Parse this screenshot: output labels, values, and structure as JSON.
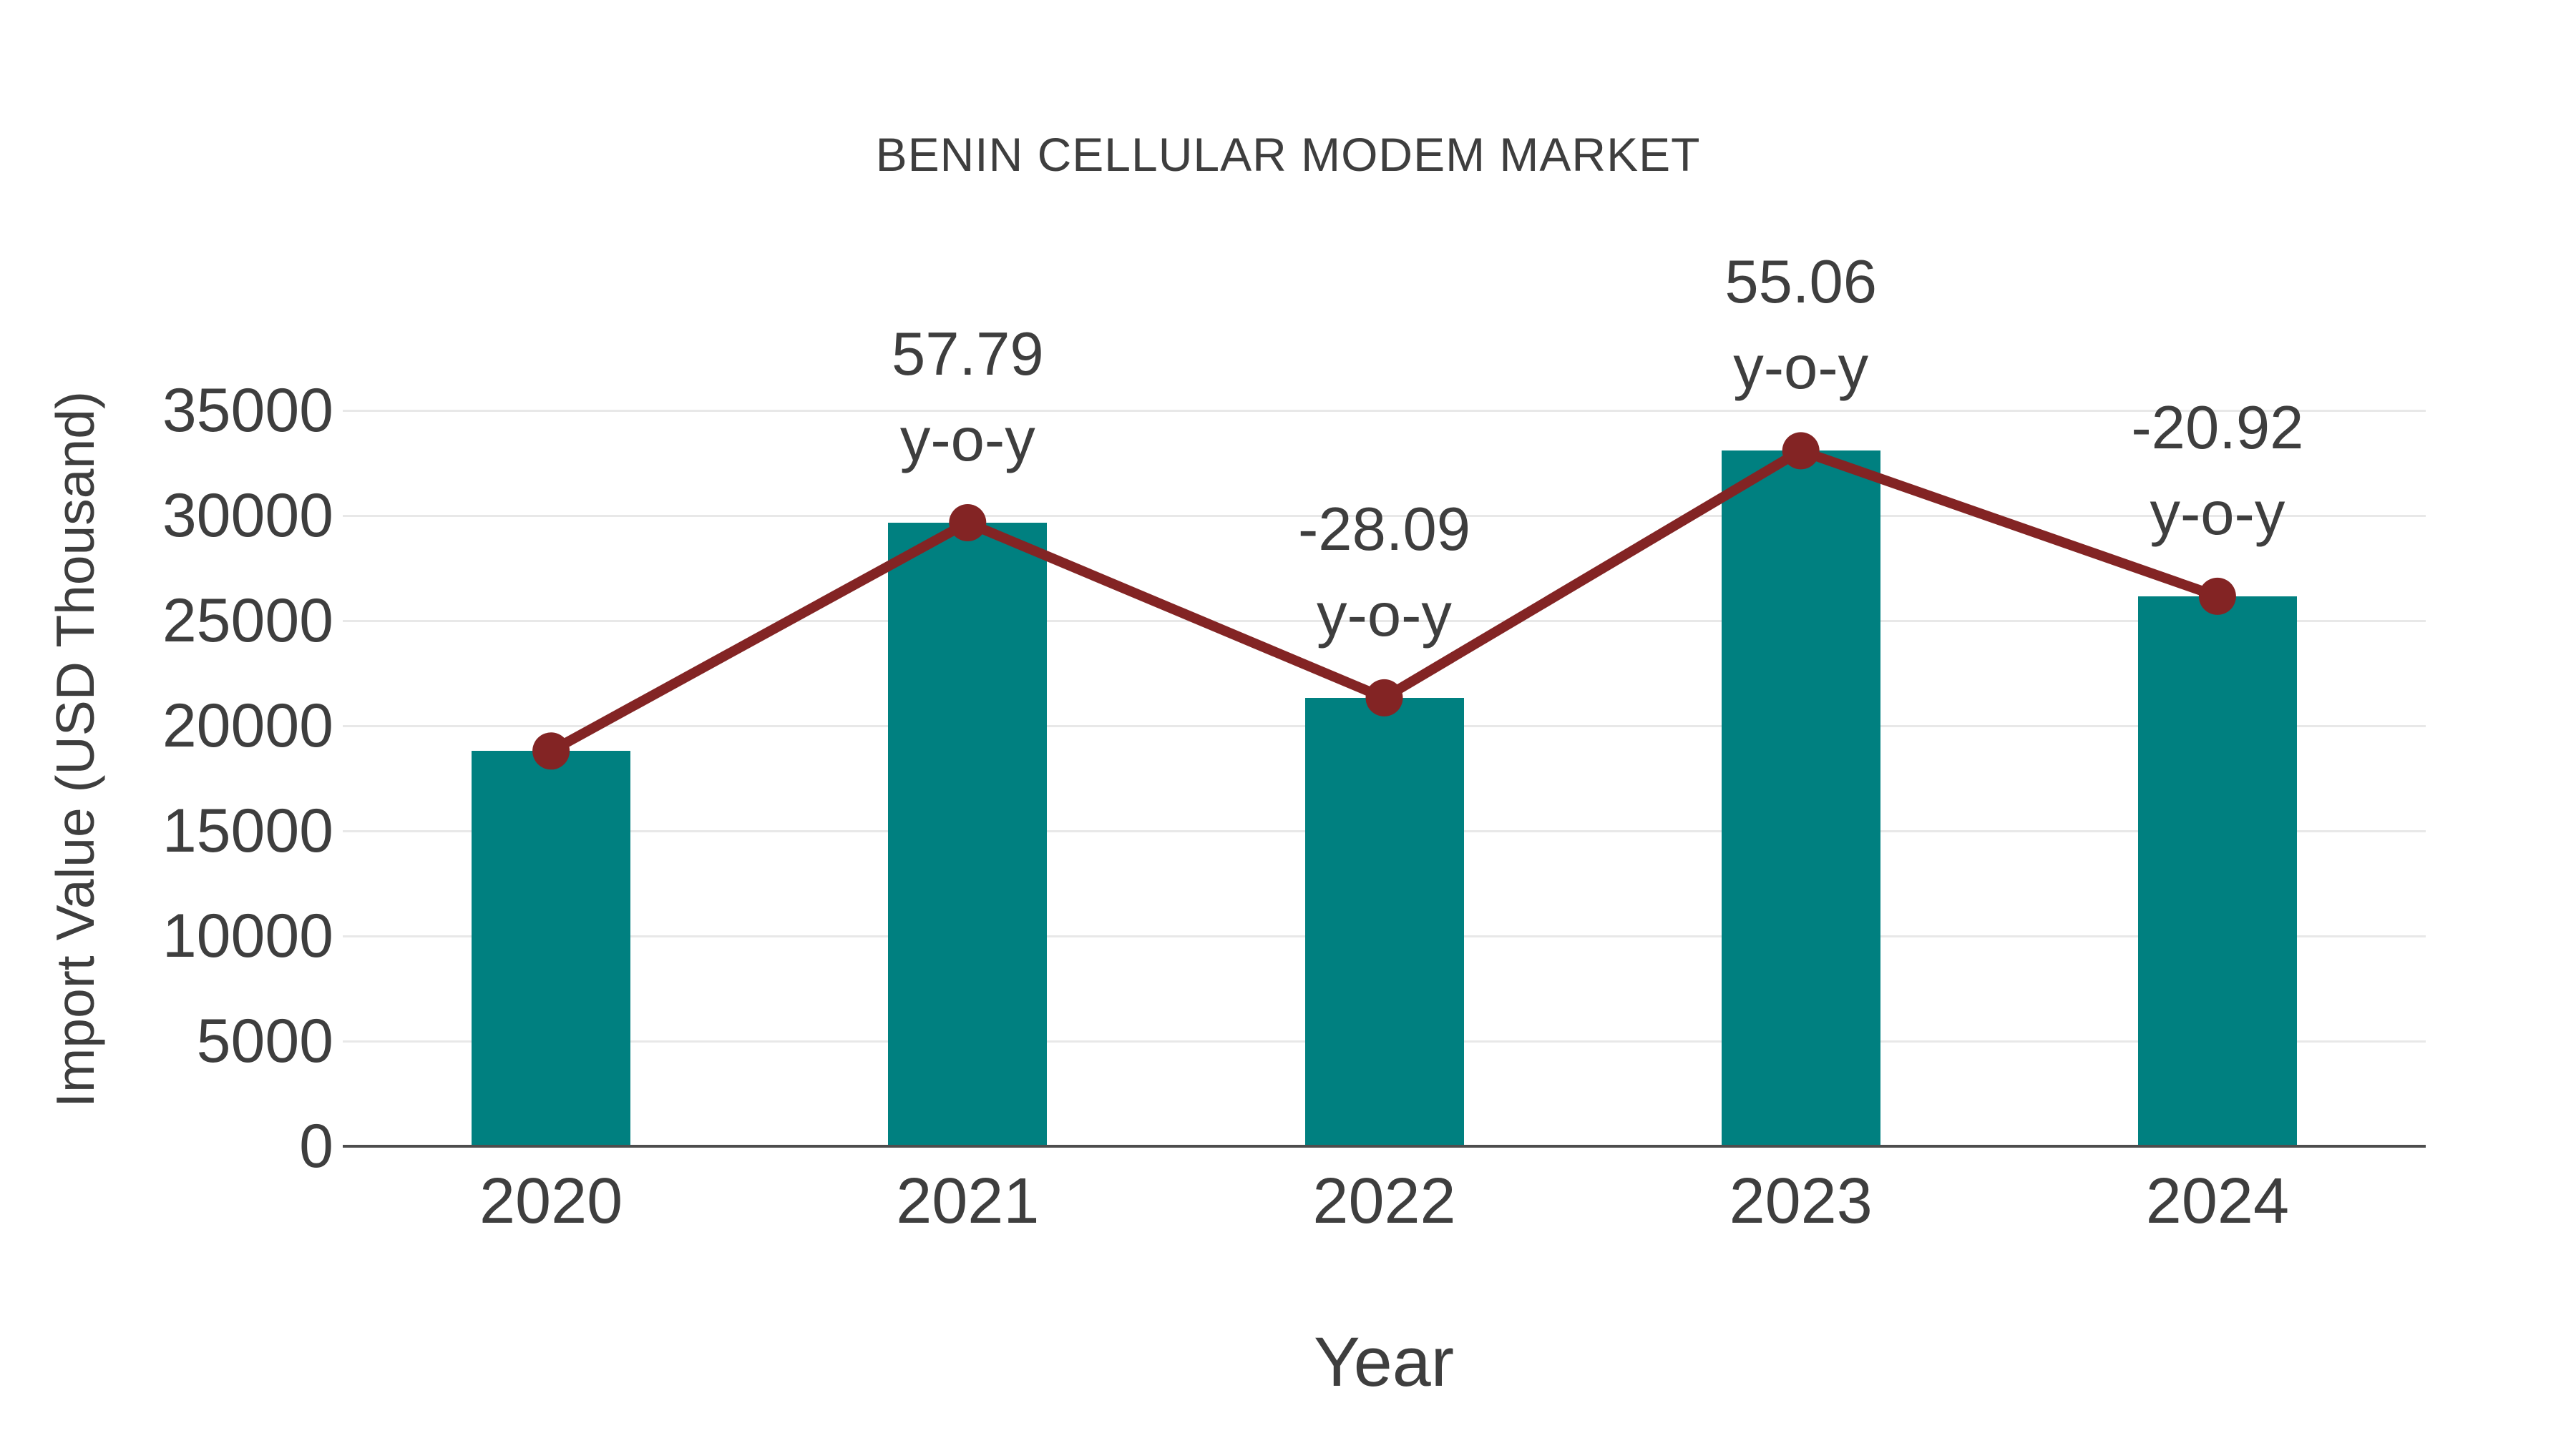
{
  "chart_data": {
    "type": "bar",
    "title": "BENIN CELLULAR MODEM MARKET",
    "xlabel": "Year",
    "ylabel": "Import Value (USD Thousand)",
    "categories": [
      "2020",
      "2021",
      "2022",
      "2023",
      "2024"
    ],
    "series": [
      {
        "name": "Import Value (USD Thousand)",
        "type": "bar",
        "color": "#008080",
        "values": [
          18800,
          29660,
          21330,
          33080,
          26160
        ]
      },
      {
        "name": "y-o-y change",
        "type": "line",
        "color": "#832424",
        "marker": "circle",
        "values": [
          18800,
          29660,
          21330,
          33080,
          26160
        ],
        "yoy_percent_labels": [
          null,
          "57.79",
          "-28.09",
          "55.06",
          "-20.92"
        ]
      }
    ],
    "annotations": [
      {
        "category": "2021",
        "line1": "57.79",
        "line2": "y-o-y"
      },
      {
        "category": "2022",
        "line1": "-28.09",
        "line2": "y-o-y"
      },
      {
        "category": "2023",
        "line1": "55.06",
        "line2": "y-o-y"
      },
      {
        "category": "2024",
        "line1": "-20.92",
        "line2": "y-o-y"
      }
    ],
    "ylim": [
      0,
      35000
    ],
    "yticks": [
      0,
      5000,
      10000,
      15000,
      20000,
      25000,
      30000,
      35000
    ],
    "grid": "horizontal",
    "legend": "none",
    "colors": {
      "bar": "#008080",
      "line": "#832424",
      "text": "#3e3e3e",
      "gridline": "#e8e8e8",
      "axis_line": "#4d4d4d",
      "background": "#ffffff"
    }
  }
}
